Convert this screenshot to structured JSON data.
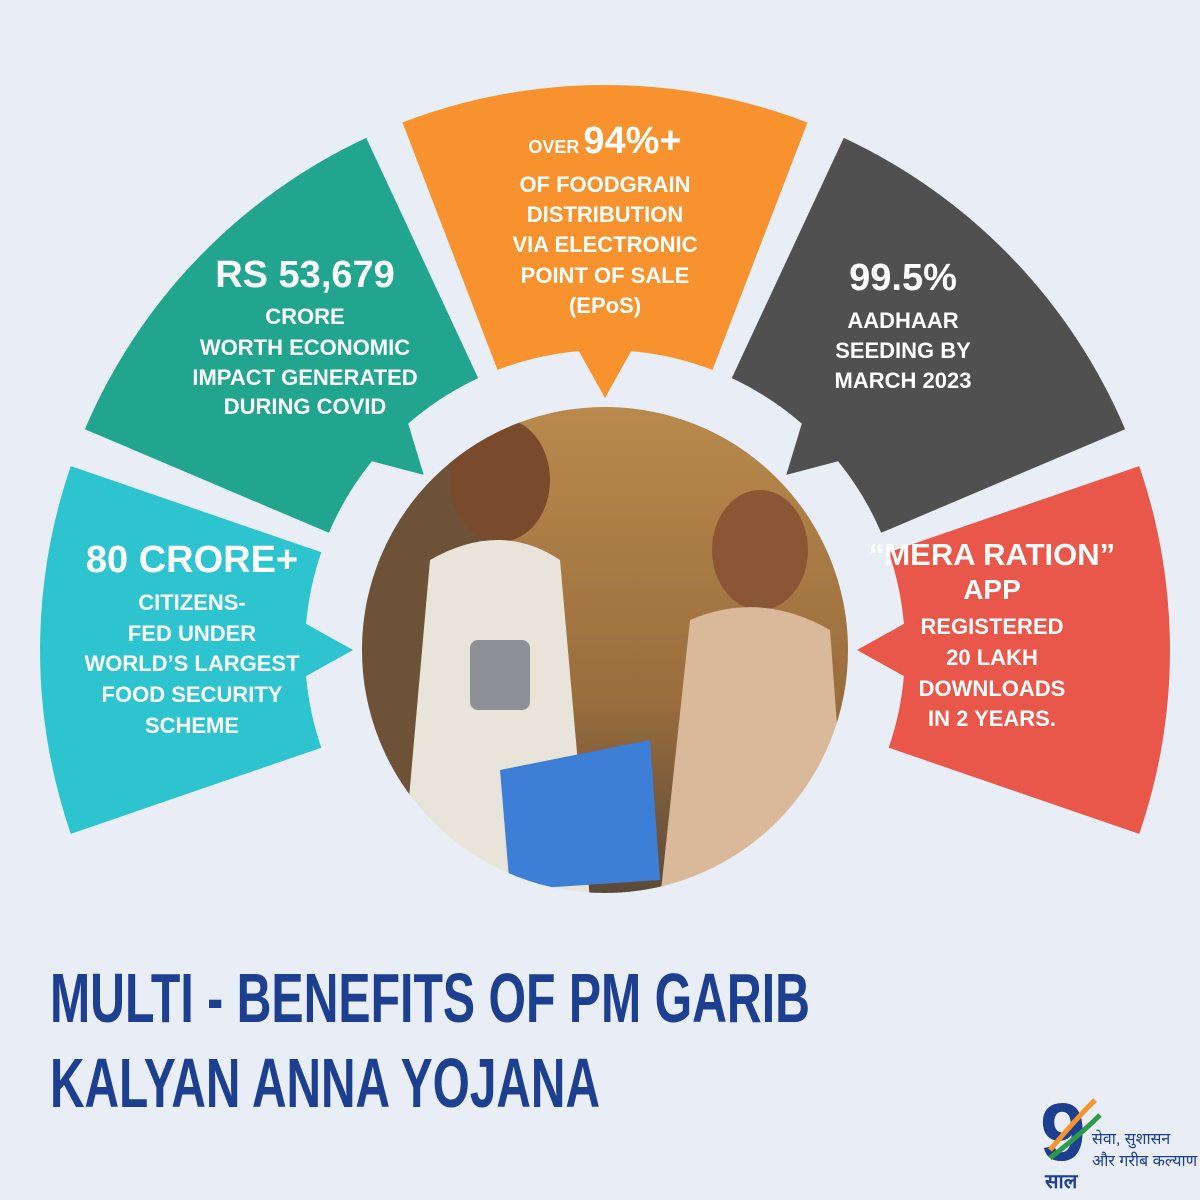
{
  "title": [
    "MULTI - BENEFITS OF PM GARIB",
    "KALYAN ANNA YOJANA"
  ],
  "segments": [
    {
      "headline": "80 CRORE+",
      "lines": [
        "CITIZENS-",
        "FED UNDER",
        "WORLD’S LARGEST",
        "FOOD SECURITY",
        "SCHEME"
      ],
      "color": "#2ec4cf"
    },
    {
      "headline": "RS 53,679",
      "lines": [
        "CRORE",
        "WORTH ECONOMIC",
        "IMPACT GENERATED",
        "DURING COVID"
      ],
      "color": "#22a58e"
    },
    {
      "prefix": "OVER",
      "headline": "94%+",
      "lines": [
        "OF FOODGRAIN",
        "DISTRIBUTION",
        "VIA ELECTRONIC",
        "POINT OF SALE",
        "(EPoS)"
      ],
      "color": "#f7922f"
    },
    {
      "headline": "99.5%",
      "lines": [
        "AADHAAR",
        "SEEDING BY",
        "MARCH 2023"
      ],
      "color": "#505050"
    },
    {
      "headline": "“MERA RATION”",
      "lines": [
        "APP",
        "REGISTERED",
        "20 LAKH",
        "DOWNLOADS",
        "IN 2 YEARS."
      ],
      "color": "#e8574a"
    }
  ],
  "logo": {
    "number": "9",
    "word": "साल",
    "tagline": [
      "सेवा, सुशासन",
      "और गरीब कल्याण"
    ]
  }
}
